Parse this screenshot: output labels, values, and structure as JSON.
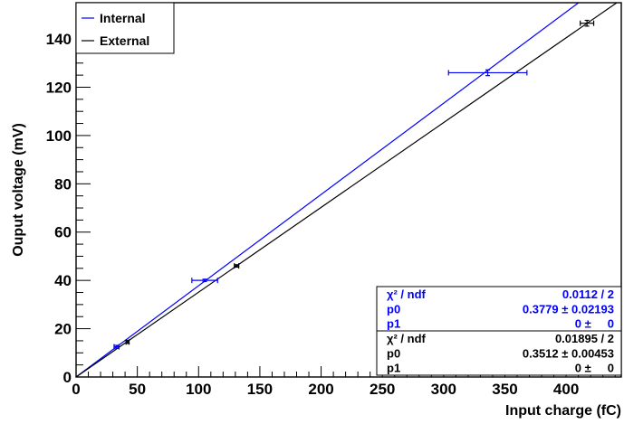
{
  "chart_data": {
    "type": "scatter",
    "title": "",
    "xlabel": "Input charge (fC)",
    "ylabel": "Ouput voltage (mV)",
    "xlim": [
      0,
      445
    ],
    "ylim": [
      0,
      155
    ],
    "x_ticks": [
      0,
      50,
      100,
      150,
      200,
      250,
      300,
      350,
      400
    ],
    "y_ticks": [
      0,
      20,
      40,
      60,
      80,
      100,
      120,
      140
    ],
    "grid": false,
    "legend_position": "top-left",
    "series": [
      {
        "name": "Internal",
        "color": "#0000ff",
        "fit_slope": 0.3779,
        "points": [
          {
            "x": 33,
            "y": 12.5,
            "xerr": 2,
            "yerr": 0.6
          },
          {
            "x": 105,
            "y": 40,
            "xerr": 10.5,
            "yerr": 0.5
          },
          {
            "x": 336,
            "y": 126,
            "xerr": 32,
            "yerr": 1.2
          }
        ]
      },
      {
        "name": "External",
        "color": "#000000",
        "fit_slope": 0.3512,
        "points": [
          {
            "x": 42,
            "y": 14.5,
            "xerr": 1.2,
            "yerr": 0.6
          },
          {
            "x": 131,
            "y": 46,
            "xerr": 1.8,
            "yerr": 0.5
          },
          {
            "x": 417,
            "y": 146.5,
            "xerr": 5.5,
            "yerr": 1.2
          }
        ]
      }
    ],
    "stats": [
      {
        "color": "#0000ff",
        "rows": [
          {
            "label": "χ² / ndf",
            "value": "0.0112 / 2"
          },
          {
            "label": "p0",
            "value": "0.3779 ± 0.02193"
          },
          {
            "label": "p1",
            "value": "0 ±     0"
          }
        ]
      },
      {
        "color": "#000000",
        "rows": [
          {
            "label": "χ² / ndf",
            "value": "0.01895 / 2"
          },
          {
            "label": "p0",
            "value": "0.3512 ± 0.00453"
          },
          {
            "label": "p1",
            "value": "0 ±     0"
          }
        ]
      }
    ]
  }
}
